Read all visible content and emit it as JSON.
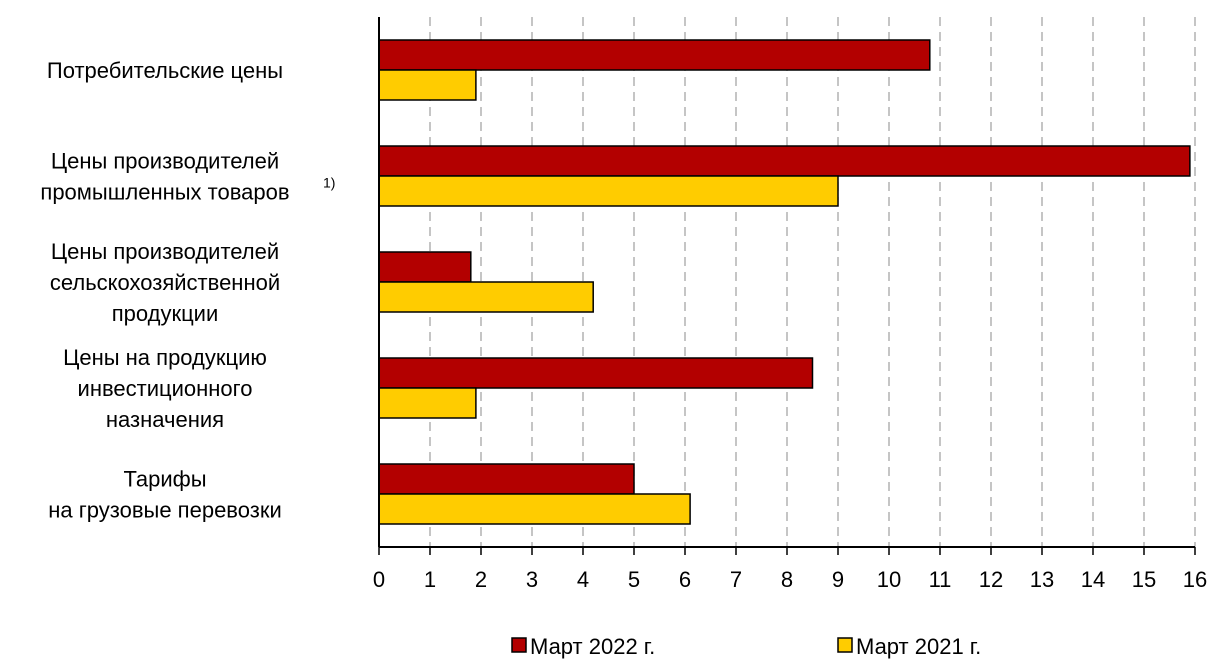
{
  "chart_data": {
    "type": "bar",
    "orientation": "horizontal",
    "title": "",
    "xlabel": "",
    "ylabel": "",
    "xlim": [
      0,
      16
    ],
    "ticks": [
      0,
      1,
      2,
      3,
      4,
      5,
      6,
      7,
      8,
      9,
      10,
      11,
      12,
      13,
      14,
      15,
      16
    ],
    "grid": "vertical-dashed",
    "legend_position": "bottom",
    "categories": [
      {
        "lines": [
          "Потребительские цены"
        ],
        "footnote": ""
      },
      {
        "lines": [
          "Цены производителей",
          "промышленных товаров"
        ],
        "footnote": "1)"
      },
      {
        "lines": [
          "Цены производителей",
          "сельскохозяйственной",
          "продукции"
        ],
        "footnote": ""
      },
      {
        "lines": [
          "Цены на продукцию",
          "инвестиционного",
          "назначения"
        ],
        "footnote": ""
      },
      {
        "lines": [
          "Тарифы",
          "на грузовые перевозки"
        ],
        "footnote": ""
      }
    ],
    "series": [
      {
        "name": "Март 2022 г.",
        "color": "#b30000",
        "values": [
          10.8,
          15.9,
          1.8,
          8.5,
          5.0
        ]
      },
      {
        "name": "Март 2021 г.",
        "color": "#ffcc00",
        "values": [
          1.9,
          9.0,
          4.2,
          1.9,
          6.1
        ]
      }
    ]
  }
}
